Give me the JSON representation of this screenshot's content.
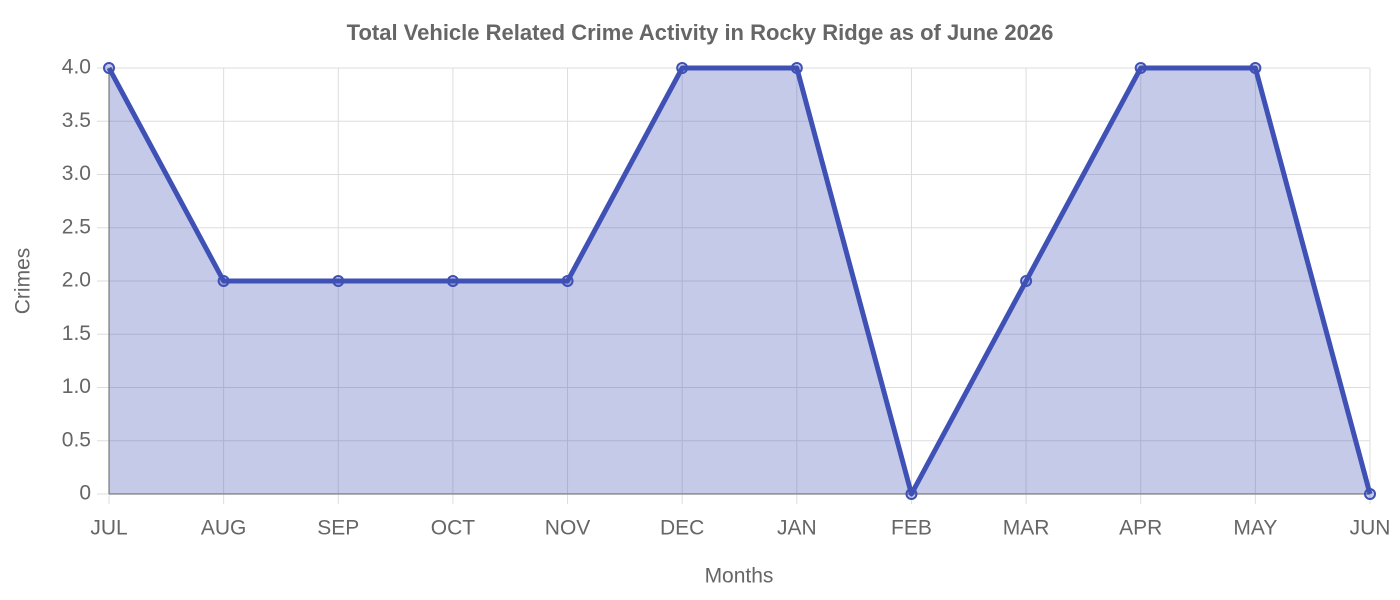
{
  "chart_data": {
    "type": "line",
    "title": "Total Vehicle Related Crime Activity in Rocky Ridge as of June 2026",
    "x_label": "Months",
    "y_label": "Crimes",
    "categories": [
      "JUL",
      "AUG",
      "SEP",
      "OCT",
      "NOV",
      "DEC",
      "JAN",
      "FEB",
      "MAR",
      "APR",
      "MAY",
      "JUN"
    ],
    "series": [
      {
        "name": "Crimes",
        "color": "#3f51b5",
        "fill_color": "rgba(63,81,181,0.3)",
        "values": [
          4,
          2,
          2,
          2,
          2,
          4,
          4,
          0,
          2,
          4,
          4,
          0
        ]
      }
    ],
    "area": true,
    "ylim": [
      0,
      4
    ],
    "yticks": [
      0,
      0.5,
      {
        "value": 1,
        "label": "1.0"
      },
      1.5,
      {
        "value": 2,
        "label": "2.0"
      },
      2.5,
      {
        "value": 3,
        "label": "3.0"
      },
      3.5,
      {
        "value": 4,
        "label": "4.0"
      }
    ],
    "grid": true
  }
}
